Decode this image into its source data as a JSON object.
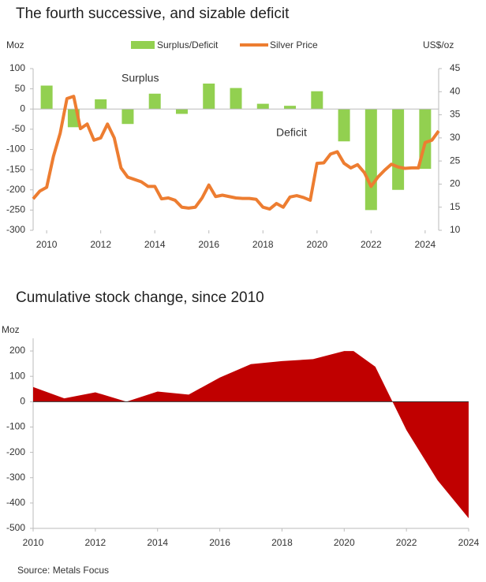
{
  "chart_data": [
    {
      "type": "combo",
      "title": "The fourth successive, and sizable deficit",
      "y_label": "Moz",
      "y2_label": "US$/oz",
      "annotations": [
        "Surplus",
        "Deficit"
      ],
      "xlim": [
        2009.5,
        2024.5
      ],
      "xticks": [
        2010,
        2012,
        2014,
        2016,
        2018,
        2020,
        2022,
        2024
      ],
      "ylim": [
        -300,
        100
      ],
      "yticks": [
        -300,
        -250,
        -200,
        -150,
        -100,
        -50,
        0,
        50,
        100
      ],
      "y2lim": [
        10,
        45
      ],
      "y2ticks": [
        10,
        15,
        20,
        25,
        30,
        35,
        40,
        45
      ],
      "series": [
        {
          "name": "Surplus/Deficit",
          "type": "bar",
          "color": "#92d050",
          "x": [
            2010,
            2011,
            2012,
            2013,
            2014,
            2015,
            2016,
            2017,
            2018,
            2019,
            2020,
            2021,
            2022,
            2023,
            2024
          ],
          "values": [
            58,
            -45,
            24,
            -37,
            38,
            -12,
            63,
            52,
            13,
            8,
            44,
            -80,
            -250,
            -200,
            -148
          ]
        },
        {
          "name": "Silver Price",
          "type": "line",
          "axis": "y2",
          "color": "#ed7d31",
          "x": [
            2009.5,
            2009.75,
            2010,
            2010.25,
            2010.5,
            2010.75,
            2011,
            2011.25,
            2011.5,
            2011.75,
            2012,
            2012.25,
            2012.5,
            2012.75,
            2013,
            2013.25,
            2013.5,
            2013.75,
            2014,
            2014.25,
            2014.5,
            2014.75,
            2015,
            2015.25,
            2015.5,
            2015.75,
            2016,
            2016.25,
            2016.5,
            2016.75,
            2017,
            2017.25,
            2017.5,
            2017.75,
            2018,
            2018.25,
            2018.5,
            2018.75,
            2019,
            2019.25,
            2019.5,
            2019.75,
            2020,
            2020.25,
            2020.5,
            2020.75,
            2021,
            2021.25,
            2021.5,
            2021.75,
            2022,
            2022.25,
            2022.5,
            2022.75,
            2023,
            2023.25,
            2023.5,
            2023.75,
            2024,
            2024.25,
            2024.5
          ],
          "values": [
            16.8,
            18.5,
            19.3,
            26,
            31,
            38.5,
            39,
            32,
            33,
            29.5,
            30,
            33,
            30,
            23.5,
            21.5,
            21,
            20.5,
            19.5,
            19.5,
            16.8,
            17,
            16.5,
            15,
            14.8,
            15,
            17,
            19.8,
            17.3,
            17.6,
            17.3,
            17,
            16.9,
            16.9,
            16.7,
            15,
            14.6,
            15.8,
            15,
            17.2,
            17.5,
            17.1,
            16.5,
            24.5,
            24.6,
            26.5,
            27,
            24.5,
            23.5,
            24.2,
            22.5,
            19.5,
            21.5,
            23,
            24.3,
            23.7,
            23.4,
            23.5,
            23.5,
            29,
            29.5,
            31.5
          ]
        }
      ]
    },
    {
      "type": "area",
      "title": "Cumulative stock change, since 2010",
      "y_label": "Moz",
      "xlim": [
        2010,
        2024
      ],
      "xticks": [
        2010,
        2012,
        2014,
        2016,
        2018,
        2020,
        2022,
        2024
      ],
      "ylim": [
        -500,
        250
      ],
      "yticks": [
        -500,
        -400,
        -300,
        -200,
        -100,
        0,
        100,
        200
      ],
      "series": [
        {
          "name": "Cumulative stock change",
          "color": "#c00000",
          "x": [
            2010,
            2011,
            2012,
            2013,
            2014,
            2015,
            2016,
            2017,
            2018,
            2019,
            2020,
            2020.3,
            2021,
            2022,
            2023,
            2024
          ],
          "values": [
            58,
            13,
            37,
            0,
            40,
            28,
            95,
            148,
            160,
            168,
            200,
            200,
            138,
            -112,
            -310,
            -460
          ]
        }
      ]
    },
    {
      "type": "text",
      "source": "Source: Metals Focus"
    }
  ]
}
